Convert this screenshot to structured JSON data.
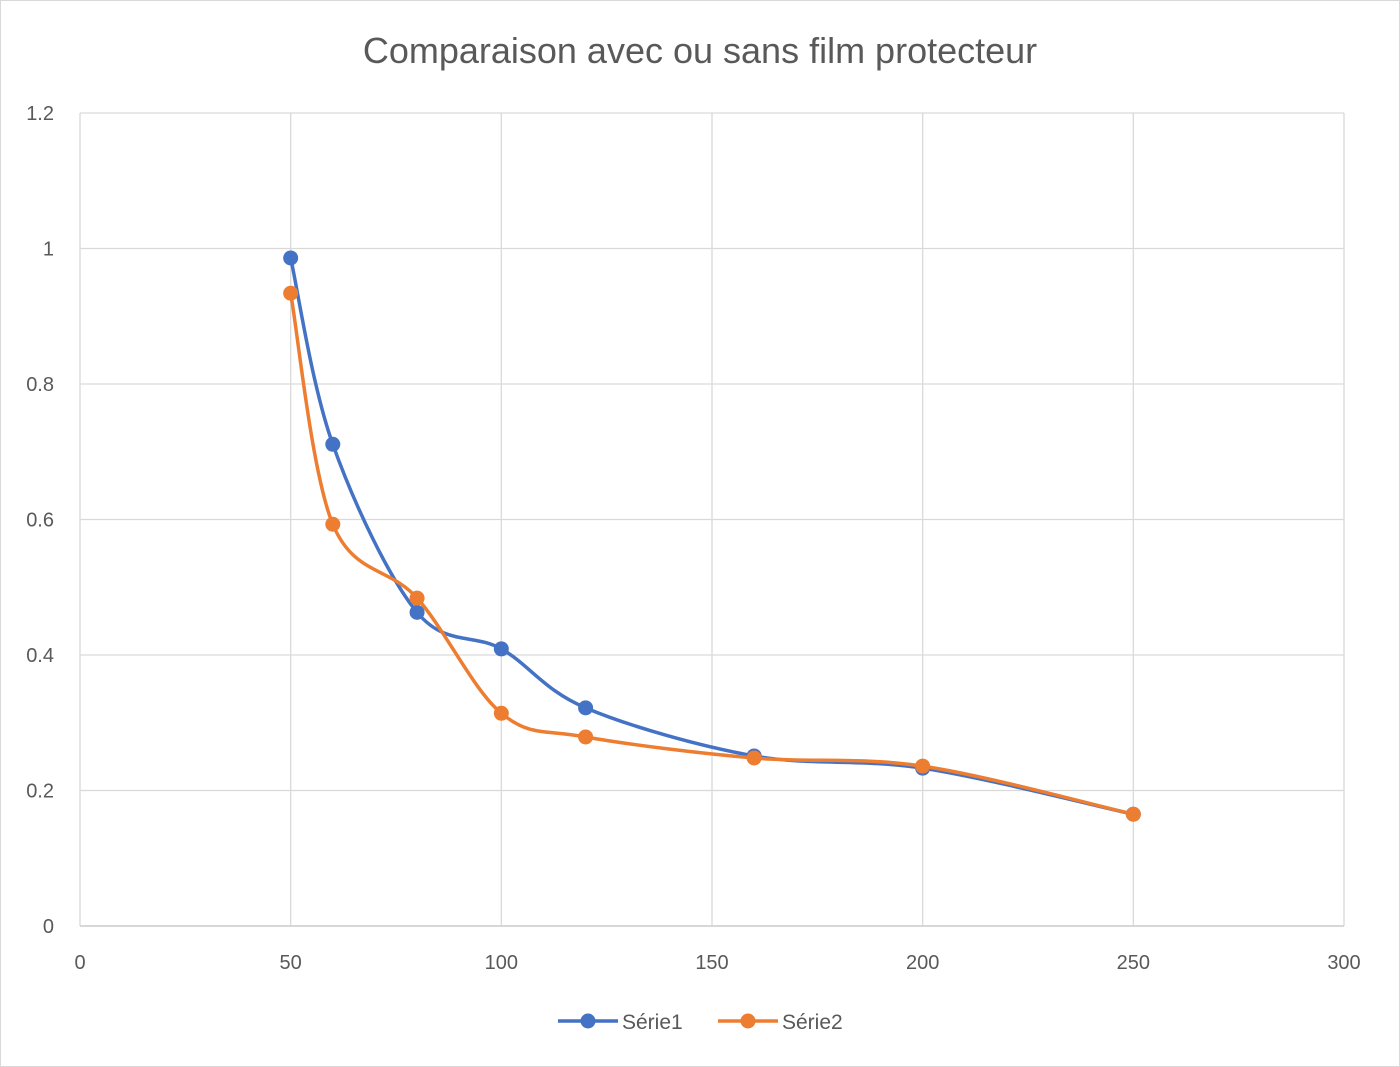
{
  "chart_data": {
    "type": "line",
    "title": "Comparaison avec ou sans film protecteur",
    "xlabel": "",
    "ylabel": "",
    "xlim": [
      0,
      300
    ],
    "ylim": [
      0,
      1.2
    ],
    "x_ticks": [
      0,
      50,
      100,
      150,
      200,
      250,
      300
    ],
    "y_ticks": [
      0,
      0.2,
      0.4,
      0.6,
      0.8,
      1,
      1.2
    ],
    "x_tick_labels": [
      "0",
      "50",
      "100",
      "150",
      "200",
      "250",
      "300"
    ],
    "y_tick_labels": [
      "0",
      "0.2",
      "0.4",
      "0.6",
      "0.8",
      "1",
      "1.2"
    ],
    "grid": true,
    "smooth": true,
    "legend_position": "bottom",
    "series": [
      {
        "name": "Série1",
        "color": "#4472C4",
        "x": [
          50,
          60,
          80,
          100,
          120,
          160,
          200,
          250
        ],
        "y": [
          0.986,
          0.711,
          0.463,
          0.409,
          0.322,
          0.251,
          0.233,
          0.165
        ]
      },
      {
        "name": "Série2",
        "color": "#ED7D31",
        "x": [
          50,
          60,
          80,
          100,
          120,
          160,
          200,
          250
        ],
        "y": [
          0.934,
          0.593,
          0.484,
          0.314,
          0.279,
          0.248,
          0.236,
          0.165
        ]
      }
    ]
  }
}
